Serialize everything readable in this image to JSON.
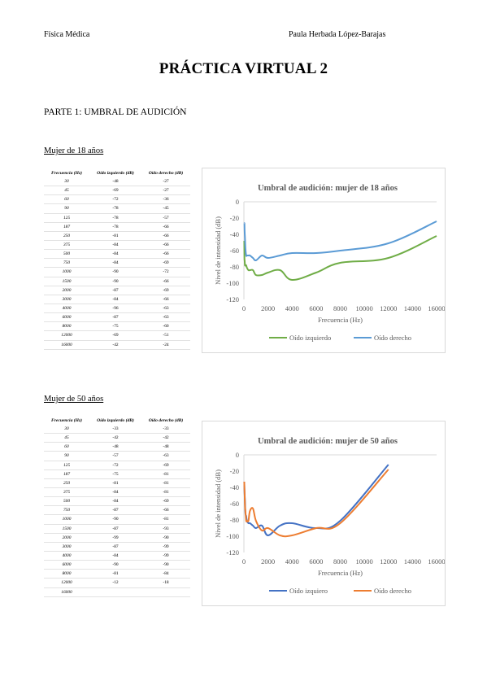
{
  "header": {
    "left": "Física Médica",
    "right": "Paula Herbada López-Barajas"
  },
  "title": "PRÁCTICA VIRTUAL 2",
  "part": "PARTE 1: UMBRAL DE AUDICIÓN",
  "sections": [
    {
      "heading": "Mujer de 18 años",
      "table": {
        "headers": [
          "Frecuencia (Hz)",
          "Oído izquierdo (dB)",
          "Oído derecho (dB)"
        ],
        "rows": [
          [
            "30",
            "-48",
            "-27"
          ],
          [
            "45",
            "-69",
            "-27"
          ],
          [
            "60",
            "-72",
            "-36"
          ],
          [
            "90",
            "-78",
            "-45"
          ],
          [
            "125",
            "-78",
            "-57"
          ],
          [
            "187",
            "-78",
            "-66"
          ],
          [
            "250",
            "-81",
            "-66"
          ],
          [
            "375",
            "-84",
            "-66"
          ],
          [
            "500",
            "-84",
            "-66"
          ],
          [
            "750",
            "-84",
            "-69"
          ],
          [
            "1000",
            "-90",
            "-72"
          ],
          [
            "1500",
            "-90",
            "-66"
          ],
          [
            "2000",
            "-87",
            "-69"
          ],
          [
            "3000",
            "-84",
            "-66"
          ],
          [
            "4000",
            "-96",
            "-63"
          ],
          [
            "6000",
            "-87",
            "-63"
          ],
          [
            "8000",
            "-75",
            "-60"
          ],
          [
            "12000",
            "-69",
            "-51"
          ],
          [
            "16000",
            "-42",
            "-24"
          ]
        ]
      }
    },
    {
      "heading": "Mujer de 50 años",
      "table": {
        "headers": [
          "Frecuencia (Hz)",
          "Oído izquierdo (dB)",
          "Oído derecho (dB)"
        ],
        "rows": [
          [
            "30",
            "-33",
            "-33"
          ],
          [
            "45",
            "-42",
            "-42"
          ],
          [
            "60",
            "-48",
            "-48"
          ],
          [
            "90",
            "-57",
            "-63"
          ],
          [
            "125",
            "-72",
            "-69"
          ],
          [
            "187",
            "-75",
            "-81"
          ],
          [
            "250",
            "-81",
            "-81"
          ],
          [
            "375",
            "-84",
            "-81"
          ],
          [
            "500",
            "-84",
            "-69"
          ],
          [
            "750",
            "-87",
            "-66"
          ],
          [
            "1000",
            "-90",
            "-81"
          ],
          [
            "1500",
            "-87",
            "-93"
          ],
          [
            "2000",
            "-99",
            "-90"
          ],
          [
            "3000",
            "-87",
            "-99"
          ],
          [
            "4000",
            "-84",
            "-99"
          ],
          [
            "6000",
            "-90",
            "-90"
          ],
          [
            "8000",
            "-81",
            "-84"
          ],
          [
            "12000",
            "-12",
            "-18"
          ],
          [
            "16000",
            "",
            ""
          ]
        ]
      }
    }
  ],
  "chart_data": [
    {
      "type": "line",
      "title": "Umbral de audición: mujer de 18 años",
      "xlabel": "Frecuencia (Hz)",
      "ylabel": "Nivel de intensidad (dB)",
      "xlim": [
        0,
        16000
      ],
      "ylim": [
        -120,
        0
      ],
      "xticks": [
        0,
        2000,
        4000,
        6000,
        8000,
        10000,
        12000,
        14000,
        16000
      ],
      "yticks": [
        0,
        -20,
        -40,
        -60,
        -80,
        -100,
        -120
      ],
      "x": [
        30,
        45,
        60,
        90,
        125,
        187,
        250,
        375,
        500,
        750,
        1000,
        1500,
        2000,
        3000,
        4000,
        6000,
        8000,
        12000,
        16000
      ],
      "series": [
        {
          "name": "Oído izquierdo",
          "color": "#70ad47",
          "values": [
            -48,
            -69,
            -72,
            -78,
            -78,
            -78,
            -81,
            -84,
            -84,
            -84,
            -90,
            -90,
            -87,
            -84,
            -96,
            -87,
            -75,
            -69,
            -42
          ]
        },
        {
          "name": "Oído derecho",
          "color": "#5b9bd5",
          "values": [
            -27,
            -27,
            -36,
            -45,
            -57,
            -66,
            -66,
            -66,
            -66,
            -69,
            -72,
            -66,
            -69,
            -66,
            -63,
            -63,
            -60,
            -51,
            -24
          ]
        }
      ],
      "legend": "bottom",
      "grid": false
    },
    {
      "type": "line",
      "title": "Umbral de audición: mujer de 50 años",
      "xlabel": "Frecuencia (Hz)",
      "ylabel": "Nivel de intensidad (dB)",
      "xlim": [
        0,
        16000
      ],
      "ylim": [
        -120,
        0
      ],
      "xticks": [
        0,
        2000,
        4000,
        6000,
        8000,
        10000,
        12000,
        14000,
        16000
      ],
      "yticks": [
        0,
        -20,
        -40,
        -60,
        -80,
        -100,
        -120
      ],
      "x": [
        30,
        45,
        60,
        90,
        125,
        187,
        250,
        375,
        500,
        750,
        1000,
        1500,
        2000,
        3000,
        4000,
        6000,
        8000,
        12000
      ],
      "series": [
        {
          "name": "Oído izquiero",
          "color": "#4472c4",
          "values": [
            -33,
            -42,
            -48,
            -57,
            -72,
            -75,
            -81,
            -84,
            -84,
            -87,
            -90,
            -87,
            -99,
            -87,
            -84,
            -90,
            -81,
            -12
          ]
        },
        {
          "name": "Oído derecho",
          "color": "#ed7d31",
          "values": [
            -33,
            -42,
            -48,
            -63,
            -69,
            -81,
            -81,
            -81,
            -69,
            -66,
            -81,
            -93,
            -90,
            -99,
            -99,
            -90,
            -84,
            -18
          ]
        }
      ],
      "legend": "bottom",
      "grid": false
    }
  ]
}
